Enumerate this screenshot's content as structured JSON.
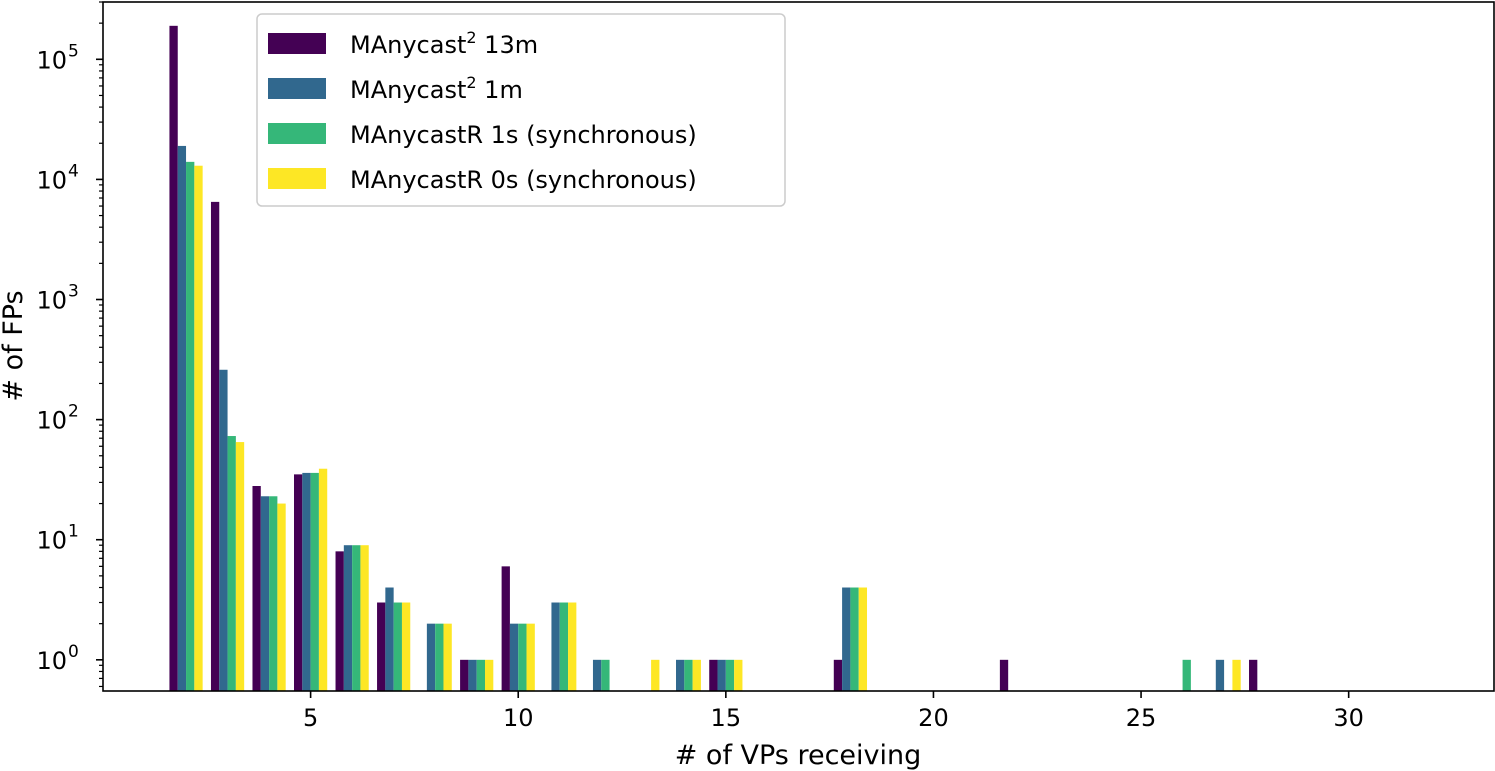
{
  "chart_data": {
    "type": "bar",
    "xlabel": "# of VPs receiving",
    "ylabel": "# of FPs",
    "yscale": "log",
    "xlim": [
      0.0,
      33.5
    ],
    "ylim": [
      0.55,
      300000
    ],
    "x_ticks": [
      {
        "value": 5,
        "label": "5"
      },
      {
        "value": 10,
        "label": "10"
      },
      {
        "value": 15,
        "label": "15"
      },
      {
        "value": 20,
        "label": "20"
      },
      {
        "value": 25,
        "label": "25"
      },
      {
        "value": 30,
        "label": "30"
      }
    ],
    "y_ticks": [
      {
        "value": 1,
        "base": "10",
        "exp": "0"
      },
      {
        "value": 10,
        "base": "10",
        "exp": "1"
      },
      {
        "value": 100,
        "base": "10",
        "exp": "2"
      },
      {
        "value": 1000,
        "base": "10",
        "exp": "3"
      },
      {
        "value": 10000,
        "base": "10",
        "exp": "4"
      },
      {
        "value": 100000,
        "base": "10",
        "exp": "5"
      }
    ],
    "grid": false,
    "legend_position": "upper-left",
    "series": [
      {
        "name": "MAnycast² 13m",
        "label_base": "MAnycast",
        "label_sup": "2",
        "label_rest": " 13m",
        "color": "#440154",
        "points": [
          [
            2,
            190000
          ],
          [
            3,
            6500
          ],
          [
            4,
            28
          ],
          [
            5,
            35
          ],
          [
            6,
            8
          ],
          [
            7,
            3
          ],
          [
            9,
            1
          ],
          [
            10,
            6
          ],
          [
            15,
            1
          ],
          [
            18,
            1
          ],
          [
            22,
            1
          ],
          [
            28,
            1
          ]
        ]
      },
      {
        "name": "MAnycast² 1m",
        "label_base": "MAnycast",
        "label_sup": "2",
        "label_rest": " 1m",
        "color": "#31688e",
        "points": [
          [
            2,
            19000
          ],
          [
            3,
            260
          ],
          [
            4,
            23
          ],
          [
            5,
            36
          ],
          [
            6,
            9
          ],
          [
            7,
            4
          ],
          [
            8,
            2
          ],
          [
            9,
            1
          ],
          [
            10,
            2
          ],
          [
            11,
            3
          ],
          [
            12,
            1
          ],
          [
            14,
            1
          ],
          [
            15,
            1
          ],
          [
            18,
            4
          ],
          [
            27,
            1
          ]
        ]
      },
      {
        "name": "MAnycastR 1s (synchronous)",
        "label_base": "MAnycastR 1s (synchronous)",
        "label_sup": "",
        "label_rest": "",
        "color": "#35b779",
        "points": [
          [
            2,
            14000
          ],
          [
            3,
            73
          ],
          [
            4,
            23
          ],
          [
            5,
            36
          ],
          [
            6,
            9
          ],
          [
            7,
            3
          ],
          [
            8,
            2
          ],
          [
            9,
            1
          ],
          [
            10,
            2
          ],
          [
            11,
            3
          ],
          [
            12,
            1
          ],
          [
            14,
            1
          ],
          [
            15,
            1
          ],
          [
            18,
            4
          ],
          [
            26,
            1
          ]
        ]
      },
      {
        "name": "MAnycastR 0s (synchronous)",
        "label_base": "MAnycastR 0s (synchronous)",
        "label_sup": "",
        "label_rest": "",
        "color": "#fde725",
        "points": [
          [
            2,
            13000
          ],
          [
            3,
            65
          ],
          [
            4,
            20
          ],
          [
            5,
            39
          ],
          [
            6,
            9
          ],
          [
            7,
            3
          ],
          [
            8,
            2
          ],
          [
            9,
            1
          ],
          [
            10,
            2
          ],
          [
            11,
            3
          ],
          [
            13,
            1
          ],
          [
            14,
            1
          ],
          [
            15,
            1
          ],
          [
            18,
            4
          ],
          [
            27,
            1
          ]
        ]
      }
    ]
  }
}
